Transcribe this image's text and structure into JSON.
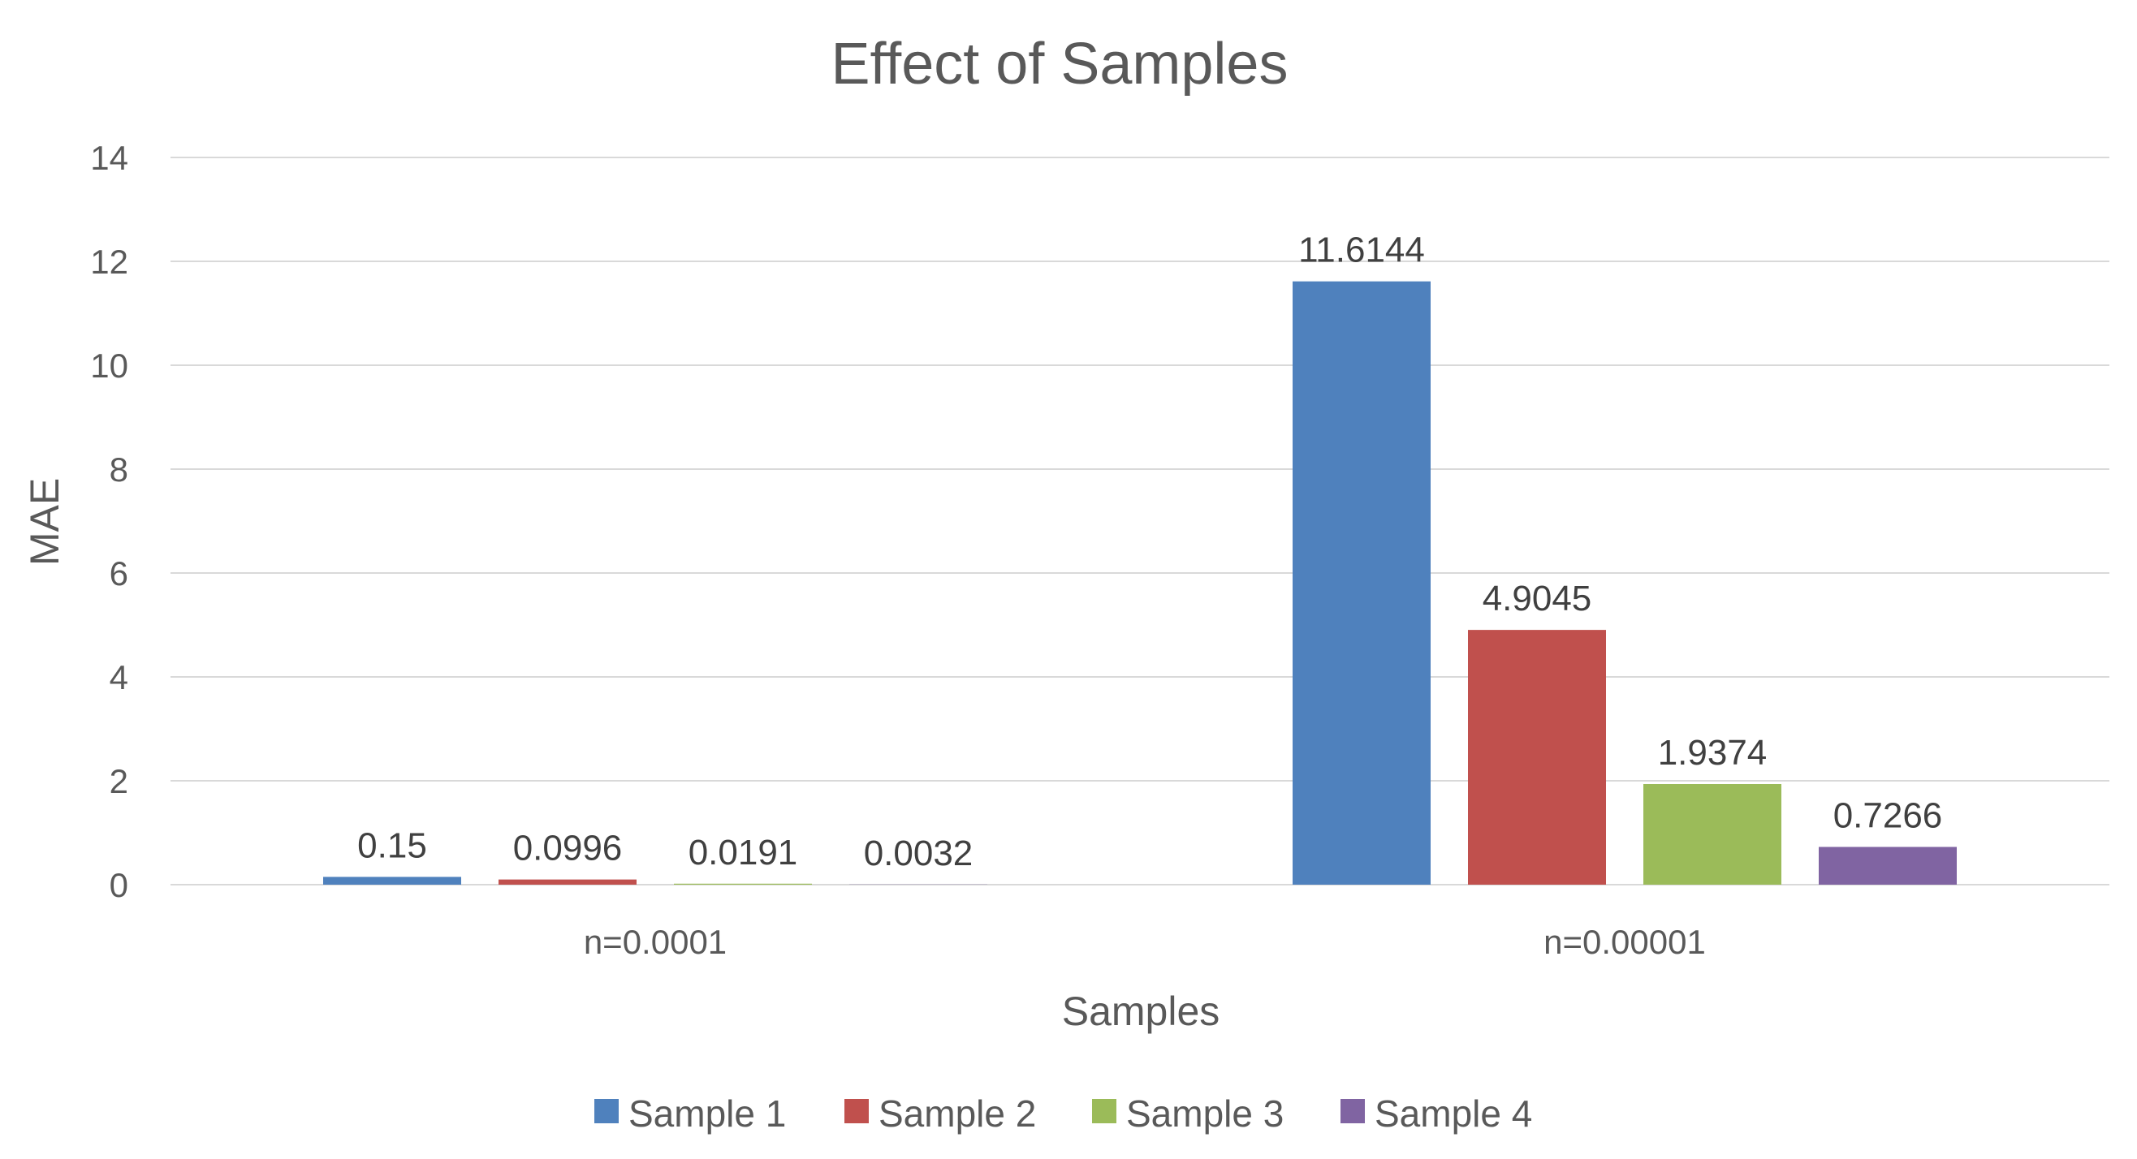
{
  "chart_data": {
    "type": "bar",
    "title": "Effect of Samples",
    "xlabel": "Samples",
    "ylabel": "MAE",
    "ylim": [
      0,
      14
    ],
    "yticks": [
      0,
      2,
      4,
      6,
      8,
      10,
      12,
      14
    ],
    "categories": [
      "n=0.0001",
      "n=0.00001"
    ],
    "series": [
      {
        "name": "Sample 1",
        "color": "#4F81BD",
        "values": [
          0.15,
          11.6144
        ],
        "labels": [
          "0.15",
          "11.6144"
        ]
      },
      {
        "name": "Sample 2",
        "color": "#C0504D",
        "values": [
          0.0996,
          4.9045
        ],
        "labels": [
          "0.0996",
          "4.9045"
        ]
      },
      {
        "name": "Sample 3",
        "color": "#9BBB59",
        "values": [
          0.0191,
          1.9374
        ],
        "labels": [
          "0.0191",
          "1.9374"
        ]
      },
      {
        "name": "Sample 4",
        "color": "#8064A2",
        "values": [
          0.0032,
          0.7266
        ],
        "labels": [
          "0.0032",
          "0.7266"
        ]
      }
    ],
    "legend_position": "bottom",
    "grid": true
  }
}
